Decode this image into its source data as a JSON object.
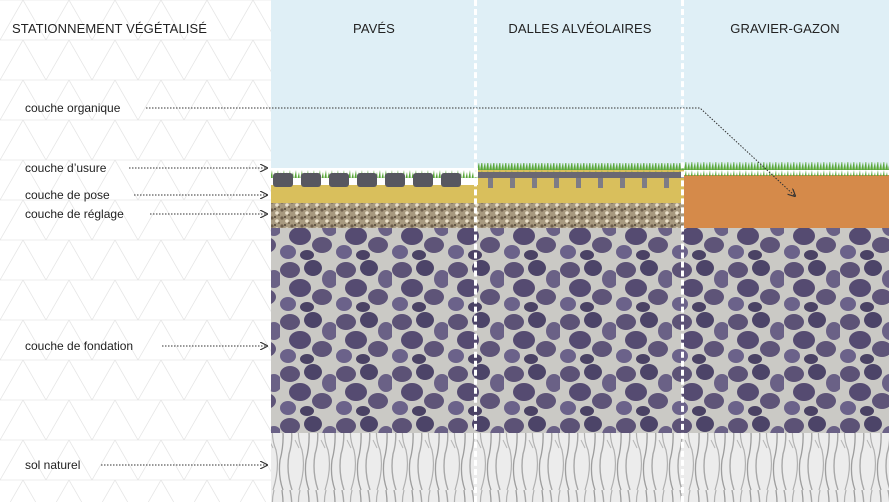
{
  "title": "STATIONNEMENT VÉGÉTALISÉ",
  "columns": [
    {
      "id": "paves",
      "label": "PAVÉS"
    },
    {
      "id": "dalles",
      "label": "DALLES ALVÉOLAIRES"
    },
    {
      "id": "gravier",
      "label": "GRAVIER-GAZON"
    }
  ],
  "layers": {
    "organique": "couche organique",
    "usure": "couche d’usure",
    "pose": "couche de pose",
    "reglage": "couche de réglage",
    "fondation": "couche de fondation",
    "sol": "sol naturel"
  },
  "colors": {
    "sky": "#dfeff6",
    "grass": "#5aa83a",
    "pave": "#575760",
    "sand": "#d9bf5c",
    "gravel_fine": "#9b8f7a",
    "organic_soil": "#d58a4a",
    "foundation_bg": "#c9c8c4",
    "foundation_stone": "#5e5478",
    "natural_soil": "#ececec",
    "roots": "#a8a8a8"
  }
}
